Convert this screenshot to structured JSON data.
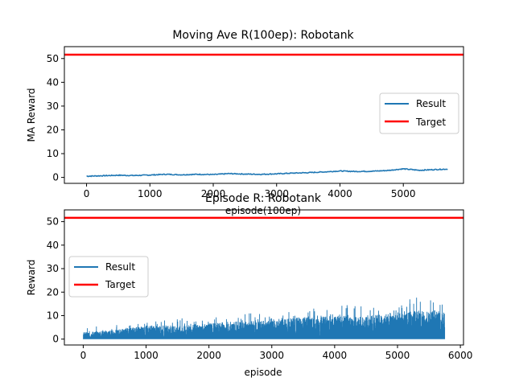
{
  "chart_data": [
    {
      "type": "line",
      "title": "Moving Ave R(100ep): Robotank",
      "xlabel": "episode(100ep)",
      "ylabel": "MA Reward",
      "xlim": [
        -350,
        5950
      ],
      "ylim": [
        -2.5,
        55
      ],
      "xticks": [
        0,
        1000,
        2000,
        3000,
        4000,
        5000
      ],
      "yticks": [
        0,
        10,
        20,
        30,
        40,
        50
      ],
      "legend_position": "center-right",
      "grid": false,
      "series": [
        {
          "name": "Result",
          "color": "#1f77b4",
          "x": [
            0,
            250,
            500,
            750,
            1000,
            1250,
            1500,
            1750,
            2000,
            2250,
            2500,
            2750,
            3000,
            3250,
            3500,
            3750,
            4000,
            4250,
            4500,
            4750,
            5000,
            5250,
            5500,
            5700
          ],
          "y": [
            0.5,
            0.7,
            0.9,
            0.8,
            1.0,
            1.3,
            1.1,
            1.3,
            1.2,
            1.6,
            1.4,
            1.3,
            1.5,
            1.8,
            2.0,
            2.3,
            2.7,
            2.5,
            2.6,
            2.9,
            3.6,
            3.0,
            3.3,
            3.5
          ]
        },
        {
          "name": "Target",
          "color": "#ff0000",
          "type": "hline",
          "y": 51.6
        }
      ]
    },
    {
      "type": "line",
      "title": "Episode R: Robotank",
      "xlabel": "episode",
      "ylabel": "Reward",
      "xlim": [
        -300,
        6050
      ],
      "ylim": [
        -2.5,
        55
      ],
      "xticks": [
        0,
        1000,
        2000,
        3000,
        4000,
        5000,
        6000
      ],
      "yticks": [
        0,
        10,
        20,
        30,
        40,
        50
      ],
      "legend_position": "center-left",
      "grid": false,
      "series": [
        {
          "name": "Result",
          "color": "#1f77b4",
          "x": [
            0,
            500,
            1000,
            1500,
            2000,
            2500,
            3000,
            3500,
            4000,
            4500,
            5000,
            5500,
            5750
          ],
          "y_low": [
            0,
            0,
            0,
            0,
            0,
            0,
            0,
            0,
            0,
            0,
            0,
            0,
            0
          ],
          "y_high": [
            3,
            4,
            6,
            6,
            7,
            8,
            8,
            10,
            11,
            10,
            12,
            13,
            12
          ],
          "y_peak": [
            5,
            6,
            8,
            9,
            9,
            12,
            10,
            13,
            15,
            14,
            16,
            19,
            16
          ]
        },
        {
          "name": "Target",
          "color": "#ff0000",
          "type": "hline",
          "y": 51.6
        }
      ]
    }
  ]
}
